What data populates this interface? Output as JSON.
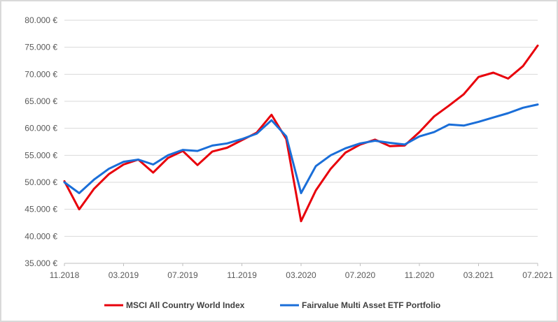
{
  "chart_data": {
    "type": "line",
    "title": "",
    "xlabel": "",
    "ylabel": "",
    "ylim": [
      35000,
      80000
    ],
    "y_ticks": [
      80000,
      75000,
      70000,
      65000,
      60000,
      55000,
      50000,
      45000,
      40000,
      35000
    ],
    "y_tick_labels": [
      "80.000 €",
      "75.000 €",
      "70.000 €",
      "65.000 €",
      "60.000 €",
      "55.000 €",
      "50.000 €",
      "45.000 €",
      "40.000 €",
      "35.000 €"
    ],
    "x_tick_labels": [
      "11.2018",
      "03.2019",
      "07.2019",
      "11.2019",
      "03.2020",
      "07.2020",
      "11.2020",
      "03.2021",
      "07.2021"
    ],
    "grid": true,
    "legend": "bottom",
    "x": [
      "11.2018",
      "12.2018",
      "01.2019",
      "02.2019",
      "03.2019",
      "04.2019",
      "05.2019",
      "06.2019",
      "07.2019",
      "08.2019",
      "09.2019",
      "10.2019",
      "11.2019",
      "12.2019",
      "01.2020",
      "02.2020",
      "03.2020",
      "04.2020",
      "05.2020",
      "06.2020",
      "07.2020",
      "08.2020",
      "09.2020",
      "10.2020",
      "11.2020",
      "12.2020",
      "01.2021",
      "02.2021",
      "03.2021",
      "04.2021",
      "05.2021",
      "06.2021",
      "07.2021"
    ],
    "series": [
      {
        "name": "MSCI All Country World Index",
        "color": "#e8000b",
        "values": [
          50200,
          45000,
          48800,
          51500,
          53300,
          54200,
          51800,
          54500,
          55800,
          53200,
          55700,
          56400,
          57800,
          59200,
          62500,
          58000,
          42800,
          48500,
          52500,
          55500,
          57000,
          57900,
          56700,
          56800,
          59300,
          62200,
          64200,
          66300,
          69500,
          70300,
          69200,
          71500,
          75300
        ]
      },
      {
        "name": "Fairvalue Multi Asset ETF Portfolio",
        "color": "#1a6ed8",
        "values": [
          50000,
          48000,
          50500,
          52500,
          53800,
          54200,
          53300,
          55000,
          56000,
          55800,
          56800,
          57200,
          58000,
          59000,
          61500,
          58500,
          48000,
          53000,
          55000,
          56300,
          57200,
          57700,
          57300,
          57000,
          58500,
          59300,
          60700,
          60500,
          61200,
          62000,
          62800,
          63800,
          64400
        ]
      }
    ]
  }
}
